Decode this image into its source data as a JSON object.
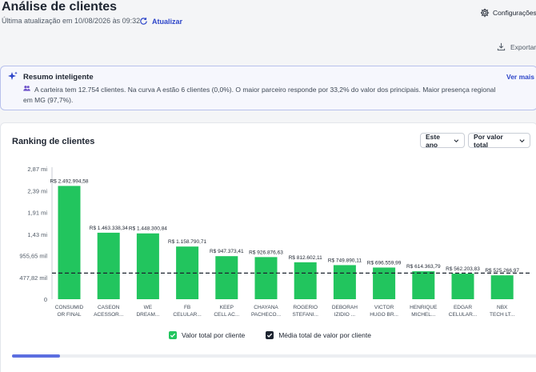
{
  "header": {
    "title": "Análise de clientes",
    "updated": "Última atualização em 10/08/2026 às 09:32",
    "refresh_label": "Atualizar",
    "settings_label": "Configurações",
    "export_label": "Exportar"
  },
  "summary": {
    "title": "Resumo inteligente",
    "more_label": "Ver mais",
    "text": "A carteira tem 12.754 clientes. Na curva A estão 6 clientes (0,0%). O maior parceiro responde por 33,2% do valor dos principais. Maior presença regional em MG (97,7%)."
  },
  "ranking": {
    "title": "Ranking de clientes",
    "period_select": "Este ano",
    "sort_select": "Por valor total"
  },
  "colors": {
    "bar": "#22c55e",
    "avg_line": "#1d2430",
    "accent": "#2d45c9",
    "legend_dark": "#1d2430"
  },
  "chart_data": {
    "type": "bar",
    "title": "Ranking de clientes",
    "ylim": [
      0,
      2870000
    ],
    "y_ticks": [
      "2,87 mi",
      "2,39 mi",
      "1,91 mi",
      "1,43 mi",
      "955,65 mil",
      "477,82 mil",
      "0"
    ],
    "y_tick_values": [
      2870000,
      2390000,
      1910000,
      1430000,
      955650,
      477820,
      0
    ],
    "categories": [
      [
        "CONSUMID",
        "OR FINAL"
      ],
      [
        "CASEON",
        "ACESSOR..."
      ],
      [
        "WE",
        "DREAM..."
      ],
      [
        "FB",
        "CELULAR..."
      ],
      [
        "KEEP",
        "CELL AC..."
      ],
      [
        "CHAYANA",
        "PACHECO..."
      ],
      [
        "ROGERIO",
        "STEFANI..."
      ],
      [
        "DEBORAH",
        "IZIDIO ..."
      ],
      [
        "VICTOR",
        "HUGO BR..."
      ],
      [
        "HENRIQUE",
        "MICHEL..."
      ],
      [
        "EDGAR",
        "CELULAR..."
      ],
      [
        "NBX",
        "TECH LT..."
      ]
    ],
    "series": [
      {
        "name": "Valor total por cliente",
        "values": [
          2492994.58,
          1463338.34,
          1448300.84,
          1158790.71,
          947373.41,
          926876.63,
          812602.11,
          749890.11,
          696559.99,
          614363.79,
          562203.83,
          525266.97
        ],
        "labels": [
          "R$ 2.492.994,58",
          "R$ 1.463.338,34",
          "R$ 1.448.300,84",
          "R$ 1.158.790,71",
          "R$ 947.373,41",
          "R$ 926.876,63",
          "R$ 812.602,11",
          "R$ 749.890,11",
          "R$ 696.559,99",
          "R$ 614.363,79",
          "R$ 562.203,83",
          "R$ 525.266,97"
        ]
      },
      {
        "name": "Média total de valor por cliente",
        "value": 575000
      }
    ],
    "grid": false,
    "legend_position": "bottom"
  }
}
